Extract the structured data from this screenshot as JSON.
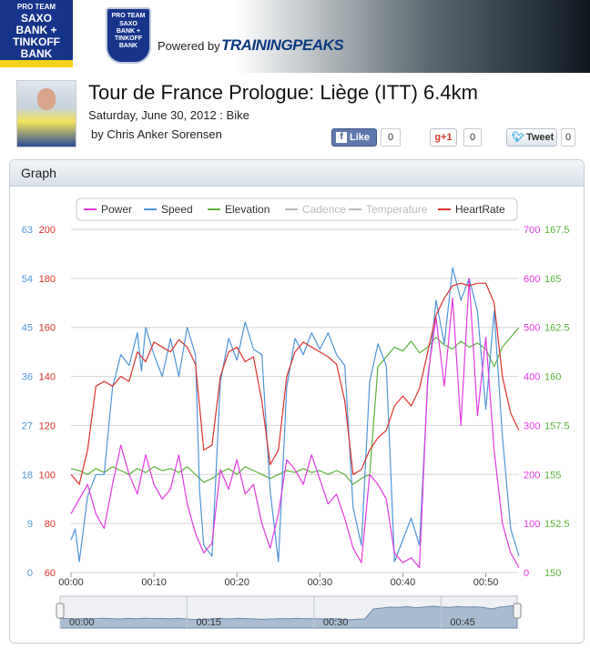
{
  "header": {
    "team_logo_lines": [
      "PRO TEAM",
      "SAXO",
      "BANK +",
      "TINKOFF",
      "BANK"
    ],
    "shield_lines": [
      "PRO TEAM",
      "SAXO",
      "BANK +",
      "TINKOFF",
      "BANK"
    ],
    "powered_by": "Powered by",
    "brand": "TRAININGPEAKS",
    "brand_colors": {
      "team": "#16358a",
      "stripe": "#f4d21a"
    }
  },
  "workout": {
    "title": "Tour de France Prologue: Liège (ITT) 6.4km",
    "date_sport": "Saturday, June 30, 2012 : Bike",
    "author": "by Chris Anker Sorensen"
  },
  "social": {
    "like_label": "Like",
    "like_count": "0",
    "gplus_label": "+1",
    "gplus_count": "0",
    "tweet_label": "Tweet",
    "tweet_count": "0"
  },
  "graph": {
    "panel_title": "Graph",
    "legend": [
      {
        "name": "Power",
        "color": "#e23ae0",
        "active": true
      },
      {
        "name": "Speed",
        "color": "#4f95d8",
        "active": true
      },
      {
        "name": "Elevation",
        "color": "#5cb33a",
        "active": true
      },
      {
        "name": "Cadence",
        "color": "#bbbbbb",
        "active": false
      },
      {
        "name": "Temperature",
        "color": "#bbbbbb",
        "active": false
      },
      {
        "name": "HeartRate",
        "color": "#d9322b",
        "active": true
      }
    ],
    "navigator_labels": [
      "00:00",
      "00:15",
      "00:30",
      "00:45"
    ]
  },
  "chart_data": {
    "type": "line",
    "x_ticks": [
      "00:00",
      "00:10",
      "00:20",
      "00:30",
      "00:40",
      "00:50"
    ],
    "x_range_minutes": [
      0,
      54
    ],
    "axes": {
      "speed": {
        "ticks": [
          0,
          9,
          18,
          27,
          36,
          45,
          54,
          63
        ],
        "color": "#4f95d8"
      },
      "heartrate": {
        "ticks": [
          60,
          80,
          100,
          120,
          140,
          160,
          180,
          200
        ],
        "color": "#d9322b"
      },
      "power": {
        "ticks": [
          0,
          100,
          200,
          300,
          400,
          500,
          600,
          700
        ],
        "color": "#e23ae0"
      },
      "elevation": {
        "ticks": [
          150,
          152.5,
          155,
          157.5,
          160,
          162.5,
          165,
          167.5
        ],
        "color": "#5cb33a"
      }
    },
    "series": [
      {
        "name": "Speed",
        "axis": "speed",
        "points": [
          [
            0,
            6
          ],
          [
            0.5,
            8
          ],
          [
            1,
            2
          ],
          [
            2,
            14
          ],
          [
            3,
            18
          ],
          [
            4,
            18
          ],
          [
            5,
            34
          ],
          [
            6,
            40
          ],
          [
            7,
            38
          ],
          [
            8,
            44
          ],
          [
            8.5,
            37
          ],
          [
            9,
            45
          ],
          [
            10,
            40
          ],
          [
            11,
            36
          ],
          [
            12,
            43
          ],
          [
            13,
            36
          ],
          [
            14,
            45
          ],
          [
            15,
            40
          ],
          [
            15.5,
            15
          ],
          [
            16,
            5
          ],
          [
            17,
            3
          ],
          [
            18,
            35
          ],
          [
            19,
            43
          ],
          [
            20,
            39
          ],
          [
            21,
            46
          ],
          [
            22,
            41
          ],
          [
            23,
            40
          ],
          [
            24,
            15
          ],
          [
            25,
            2
          ],
          [
            26,
            34
          ],
          [
            27,
            43
          ],
          [
            28,
            40
          ],
          [
            29,
            44
          ],
          [
            30,
            41
          ],
          [
            31,
            44
          ],
          [
            32,
            40
          ],
          [
            33,
            38
          ],
          [
            34,
            12
          ],
          [
            35,
            5
          ],
          [
            36,
            35
          ],
          [
            37,
            42
          ],
          [
            38,
            38
          ],
          [
            38.5,
            20
          ],
          [
            39,
            2
          ],
          [
            40,
            6
          ],
          [
            41,
            10
          ],
          [
            42,
            5
          ],
          [
            43,
            35
          ],
          [
            44,
            50
          ],
          [
            45,
            42
          ],
          [
            46,
            56
          ],
          [
            47,
            50
          ],
          [
            48,
            54
          ],
          [
            49,
            48
          ],
          [
            50,
            30
          ],
          [
            51,
            48
          ],
          [
            52,
            25
          ],
          [
            53,
            8
          ],
          [
            54,
            3
          ]
        ]
      },
      {
        "name": "HeartRate",
        "axis": "heartrate",
        "points": [
          [
            0,
            100
          ],
          [
            1,
            96
          ],
          [
            2,
            110
          ],
          [
            3,
            136
          ],
          [
            4,
            138
          ],
          [
            5,
            136
          ],
          [
            6,
            140
          ],
          [
            7,
            138
          ],
          [
            8,
            150
          ],
          [
            9,
            146
          ],
          [
            10,
            154
          ],
          [
            11,
            152
          ],
          [
            12,
            150
          ],
          [
            13,
            155
          ],
          [
            14,
            152
          ],
          [
            15,
            145
          ],
          [
            16,
            110
          ],
          [
            17,
            112
          ],
          [
            18,
            140
          ],
          [
            19,
            150
          ],
          [
            20,
            152
          ],
          [
            21,
            146
          ],
          [
            22,
            148
          ],
          [
            23,
            130
          ],
          [
            24,
            104
          ],
          [
            25,
            110
          ],
          [
            26,
            140
          ],
          [
            27,
            150
          ],
          [
            28,
            154
          ],
          [
            29,
            152
          ],
          [
            30,
            150
          ],
          [
            31,
            148
          ],
          [
            32,
            145
          ],
          [
            33,
            130
          ],
          [
            34,
            100
          ],
          [
            35,
            102
          ],
          [
            36,
            110
          ],
          [
            37,
            115
          ],
          [
            38,
            118
          ],
          [
            39,
            128
          ],
          [
            40,
            132
          ],
          [
            41,
            128
          ],
          [
            42,
            135
          ],
          [
            43,
            150
          ],
          [
            44,
            165
          ],
          [
            45,
            172
          ],
          [
            46,
            177
          ],
          [
            47,
            178
          ],
          [
            48,
            177
          ],
          [
            49,
            178
          ],
          [
            50,
            178
          ],
          [
            51,
            170
          ],
          [
            52,
            140
          ],
          [
            53,
            125
          ],
          [
            54,
            118
          ]
        ]
      },
      {
        "name": "Power",
        "axis": "power",
        "points": [
          [
            0,
            120
          ],
          [
            1,
            150
          ],
          [
            2,
            180
          ],
          [
            3,
            120
          ],
          [
            4,
            90
          ],
          [
            5,
            180
          ],
          [
            6,
            260
          ],
          [
            7,
            200
          ],
          [
            8,
            160
          ],
          [
            9,
            240
          ],
          [
            10,
            180
          ],
          [
            11,
            150
          ],
          [
            12,
            170
          ],
          [
            13,
            240
          ],
          [
            14,
            140
          ],
          [
            15,
            80
          ],
          [
            16,
            40
          ],
          [
            17,
            60
          ],
          [
            18,
            210
          ],
          [
            19,
            170
          ],
          [
            20,
            230
          ],
          [
            21,
            160
          ],
          [
            22,
            180
          ],
          [
            23,
            100
          ],
          [
            24,
            50
          ],
          [
            25,
            120
          ],
          [
            26,
            230
          ],
          [
            27,
            210
          ],
          [
            28,
            180
          ],
          [
            29,
            240
          ],
          [
            30,
            190
          ],
          [
            31,
            140
          ],
          [
            32,
            160
          ],
          [
            33,
            110
          ],
          [
            34,
            50
          ],
          [
            35,
            20
          ],
          [
            36,
            200
          ],
          [
            37,
            180
          ],
          [
            38,
            150
          ],
          [
            39,
            40
          ],
          [
            40,
            20
          ],
          [
            41,
            30
          ],
          [
            42,
            10
          ],
          [
            43,
            400
          ],
          [
            44,
            520
          ],
          [
            45,
            380
          ],
          [
            46,
            560
          ],
          [
            47,
            300
          ],
          [
            48,
            600
          ],
          [
            49,
            320
          ],
          [
            50,
            480
          ],
          [
            51,
            250
          ],
          [
            52,
            100
          ],
          [
            53,
            40
          ],
          [
            54,
            10
          ]
        ]
      },
      {
        "name": "Elevation",
        "axis": "elevation",
        "points": [
          [
            0,
            155.3
          ],
          [
            1,
            155.2
          ],
          [
            2,
            155.0
          ],
          [
            3,
            155.3
          ],
          [
            4,
            155.1
          ],
          [
            5,
            155.4
          ],
          [
            6,
            155.2
          ],
          [
            7,
            155.0
          ],
          [
            8,
            155.3
          ],
          [
            9,
            155.1
          ],
          [
            10,
            155.4
          ],
          [
            11,
            155.2
          ],
          [
            12,
            155.3
          ],
          [
            13,
            155.1
          ],
          [
            14,
            155.4
          ],
          [
            15,
            155.0
          ],
          [
            16,
            154.6
          ],
          [
            17,
            154.8
          ],
          [
            18,
            155.1
          ],
          [
            19,
            155.3
          ],
          [
            20,
            155.0
          ],
          [
            21,
            155.4
          ],
          [
            22,
            155.2
          ],
          [
            23,
            155.0
          ],
          [
            24,
            154.8
          ],
          [
            25,
            155.0
          ],
          [
            26,
            155.2
          ],
          [
            27,
            155.1
          ],
          [
            28,
            155.3
          ],
          [
            29,
            155.1
          ],
          [
            30,
            155.2
          ],
          [
            31,
            155.0
          ],
          [
            32,
            155.2
          ],
          [
            33,
            155.0
          ],
          [
            34,
            154.5
          ],
          [
            35,
            154.8
          ],
          [
            36,
            155.0
          ],
          [
            37,
            160.5
          ],
          [
            38,
            161.0
          ],
          [
            39,
            161.5
          ],
          [
            40,
            161.3
          ],
          [
            41,
            161.8
          ],
          [
            42,
            161.2
          ],
          [
            43,
            161.5
          ],
          [
            44,
            162.0
          ],
          [
            45,
            161.6
          ],
          [
            46,
            161.4
          ],
          [
            47,
            161.8
          ],
          [
            48,
            161.5
          ],
          [
            49,
            161.7
          ],
          [
            50,
            161.4
          ],
          [
            51,
            160.5
          ],
          [
            52,
            161.5
          ],
          [
            53,
            162.0
          ],
          [
            54,
            162.5
          ]
        ]
      }
    ]
  }
}
